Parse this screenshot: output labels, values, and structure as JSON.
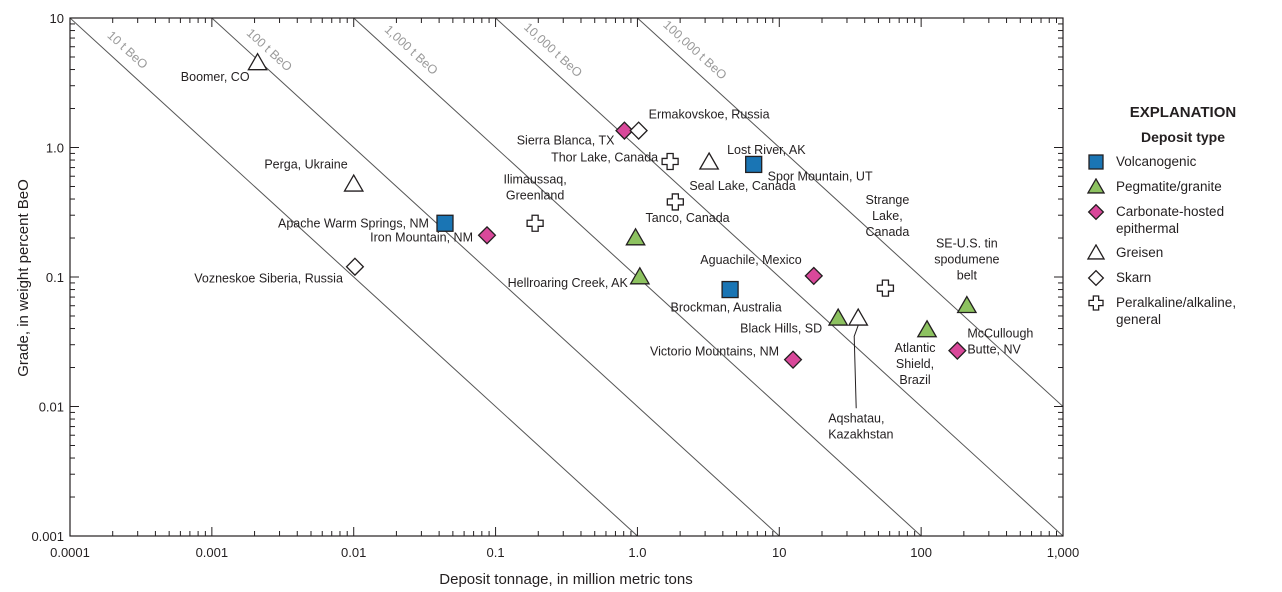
{
  "chart_data": {
    "type": "scatter",
    "x_scale": "log",
    "y_scale": "log",
    "xlim": [
      0.0001,
      1000
    ],
    "ylim": [
      0.001,
      10
    ],
    "xlabel": "Deposit tonnage, in million metric tons",
    "ylabel": "Grade, in weight percent BeO",
    "x_ticks": [
      "0.0001",
      "0.001",
      "0.01",
      "0.1",
      "1.0",
      "10",
      "100",
      "1,000"
    ],
    "y_ticks": [
      "0.001",
      "0.01",
      "0.1",
      "1.0",
      "10"
    ],
    "grid": false,
    "legend_position": "right",
    "isolines": [
      {
        "label": "10 t BeO",
        "contained_tonnes": 10
      },
      {
        "label": "100 t BeO",
        "contained_tonnes": 100
      },
      {
        "label": "1,000 t BeO",
        "contained_tonnes": 1000
      },
      {
        "label": "10,000 t BeO",
        "contained_tonnes": 10000
      },
      {
        "label": "100,000 t BeO",
        "contained_tonnes": 100000
      }
    ],
    "series": [
      {
        "name": "Volcanogenic",
        "symbol": "square",
        "color": "#1a75b4",
        "points": [
          {
            "label": "Apache Warm Springs, NM",
            "x": 0.044,
            "y": 0.26
          },
          {
            "label": "Brockman, Australia",
            "x": 4.5,
            "y": 0.08
          },
          {
            "label": "Spor Mountain, UT",
            "x": 6.6,
            "y": 0.74
          }
        ]
      },
      {
        "name": "Pegmatite/granite",
        "symbol": "triangle",
        "color": "#8dc260",
        "points": [
          {
            "label": "Tanco, Canada",
            "x": 0.97,
            "y": 0.2
          },
          {
            "label": "Hellroaring Creek, AK",
            "x": 1.04,
            "y": 0.1
          },
          {
            "label": "Black Hills, SD",
            "x": 26,
            "y": 0.048
          },
          {
            "label": "Atlantic Shield, Brazil",
            "x": 110,
            "y": 0.039
          },
          {
            "label": "SE-U.S. tin spodumene belt",
            "x": 210,
            "y": 0.06
          }
        ]
      },
      {
        "name": "Carbonate-hosted epithermal",
        "symbol": "diamond",
        "color": "#d9489a",
        "points": [
          {
            "label": "Iron Mountain, NM",
            "x": 0.087,
            "y": 0.21
          },
          {
            "label": "Sierra Blanca, TX",
            "x": 0.81,
            "y": 1.35
          },
          {
            "label": "Aguachile, Mexico",
            "x": 17.5,
            "y": 0.102
          },
          {
            "label": "Victorio Mountains, NM",
            "x": 12.5,
            "y": 0.023
          },
          {
            "label": "McCullough Butte, NV",
            "x": 180,
            "y": 0.027
          }
        ]
      },
      {
        "name": "Greisen",
        "symbol": "open-triangle",
        "color": "#ffffff",
        "points": [
          {
            "label": "Boomer, CO",
            "x": 0.0021,
            "y": 4.5
          },
          {
            "label": "Perga, Ukraine",
            "x": 0.01,
            "y": 0.52
          },
          {
            "label": "Lost River, AK",
            "x": 3.2,
            "y": 0.77
          },
          {
            "label": "Aqshatau, Kazakhstan",
            "x": 36,
            "y": 0.048
          }
        ]
      },
      {
        "name": "Skarn",
        "symbol": "open-diamond",
        "color": "#ffffff",
        "points": [
          {
            "label": "Vozneskoe Siberia, Russia",
            "x": 0.0102,
            "y": 0.12
          },
          {
            "label": "Ermakovskoe, Russia",
            "x": 1.02,
            "y": 1.35
          }
        ]
      },
      {
        "name": "Peralkaline/alkaline, general",
        "symbol": "open-cross",
        "color": "#ffffff",
        "points": [
          {
            "label": "Thor Lake, Canada",
            "x": 1.7,
            "y": 0.78
          },
          {
            "label": "Seal Lake, Canada",
            "x": 1.85,
            "y": 0.38
          },
          {
            "label": "Ilimaussaq, Greenland",
            "x": 0.19,
            "y": 0.26
          },
          {
            "label": "Strange Lake, Canada",
            "x": 56,
            "y": 0.082
          }
        ]
      }
    ]
  },
  "legend": {
    "title": "EXPLANATION",
    "subtitle": "Deposit type",
    "items": [
      {
        "label": "Volcanogenic",
        "symbol": "square",
        "color": "#1a75b4"
      },
      {
        "label": "Pegmatite/granite",
        "symbol": "triangle",
        "color": "#8dc260"
      },
      {
        "label": "Carbonate-hosted\nepithermal",
        "symbol": "diamond",
        "color": "#d9489a"
      },
      {
        "label": "Greisen",
        "symbol": "open-triangle",
        "color": "#ffffff"
      },
      {
        "label": "Skarn",
        "symbol": "open-diamond",
        "color": "#ffffff"
      },
      {
        "label": "Peralkaline/alkaline,\ngeneral",
        "symbol": "open-cross",
        "color": "#ffffff"
      }
    ]
  }
}
